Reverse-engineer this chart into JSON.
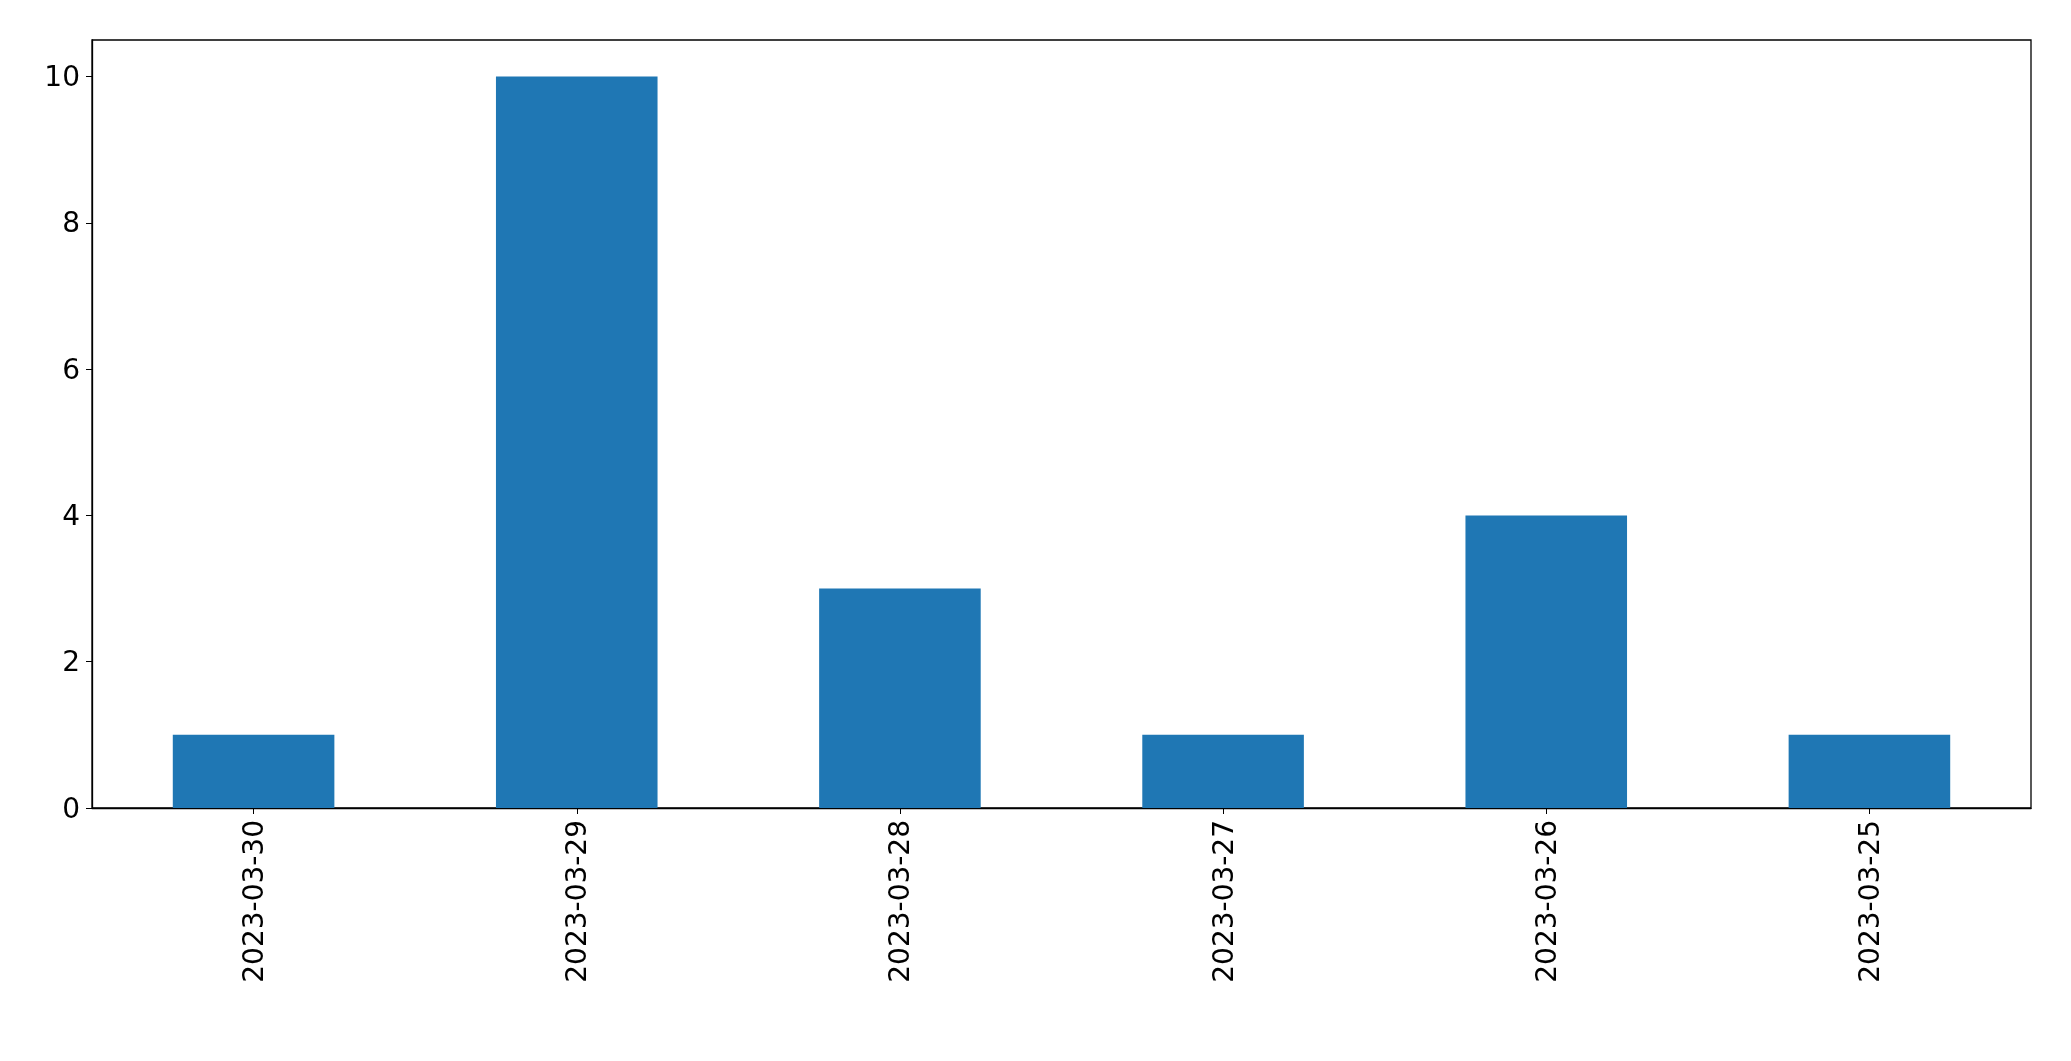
{
  "chart_data": {
    "type": "bar",
    "categories": [
      "2023-03-30",
      "2023-03-29",
      "2023-03-28",
      "2023-03-27",
      "2023-03-26",
      "2023-03-25"
    ],
    "values": [
      1,
      10,
      3,
      1,
      4,
      1
    ],
    "color": "#1f77b4",
    "ylim": [
      0,
      10.5
    ],
    "yticks": [
      0,
      2,
      4,
      6,
      8,
      10
    ]
  }
}
